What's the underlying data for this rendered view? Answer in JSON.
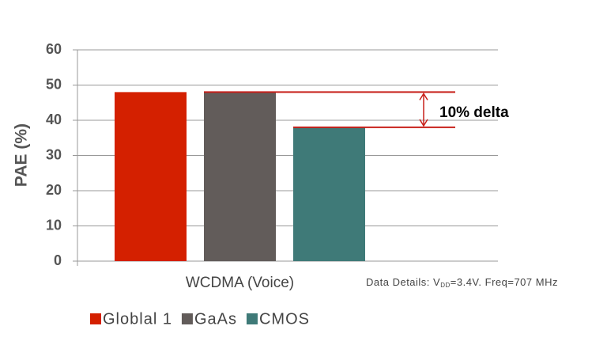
{
  "chart_data": {
    "type": "bar",
    "categories": [
      "WCDMA (Voice)"
    ],
    "series": [
      {
        "name": "Globlal 1",
        "color": "#d42000",
        "values": [
          48
        ]
      },
      {
        "name": "GaAs",
        "color": "#625c5a",
        "values": [
          48
        ]
      },
      {
        "name": "CMOS",
        "color": "#3f7a78",
        "values": [
          38
        ]
      }
    ],
    "y_label": "PAE (%)",
    "ylim": [
      0,
      60
    ],
    "yticks": [
      0,
      10,
      20,
      30,
      40,
      50,
      60
    ],
    "grid": true,
    "annotation": "10% delta",
    "note": [
      "Data Details: V",
      "DD",
      "=3.4V. Freq=707 MHz"
    ],
    "legend": "bottom-left"
  }
}
